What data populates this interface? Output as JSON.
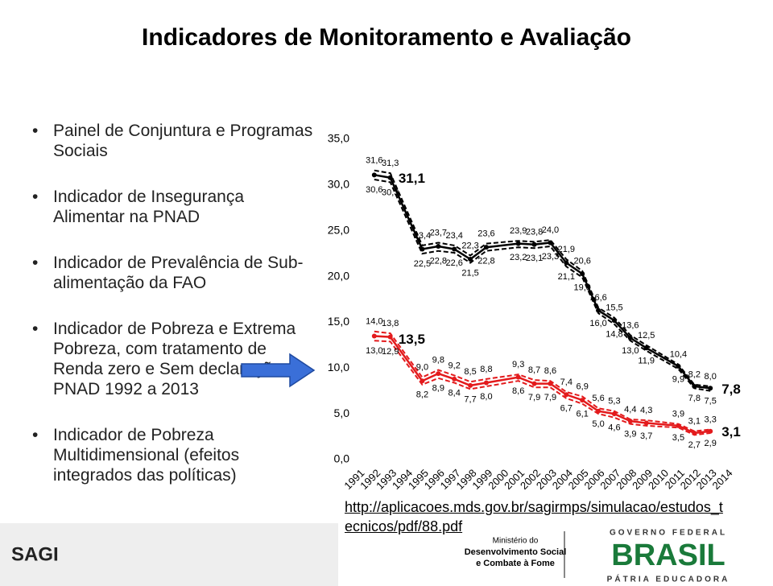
{
  "title": "Indicadores de Monitoramento e Avaliação",
  "bullets": [
    "Painel de Conjuntura e Programas Sociais",
    "Indicador de Insegurança Alimentar na PNAD",
    "Indicador de Prevalência de Sub-alimentação da FAO",
    "Indicador de Pobreza e Extrema Pobreza, com tratamento de Renda zero e Sem declaração na PNAD 1992 a 2013",
    "Indicador de Pobreza Multidimensional (efeitos integrados das políticas)"
  ],
  "chart_data": {
    "type": "line",
    "x": [
      1992,
      1993,
      1995,
      1996,
      1997,
      1998,
      1999,
      2001,
      2002,
      2003,
      2004,
      2005,
      2006,
      2007,
      2008,
      2009,
      2011,
      2012,
      2013
    ],
    "xlim": [
      1990.5,
      2014.5
    ],
    "xticks": [
      1991,
      1992,
      1993,
      1994,
      1995,
      1996,
      1997,
      1998,
      1999,
      2000,
      2001,
      2002,
      2003,
      2004,
      2005,
      2006,
      2007,
      2008,
      2009,
      2010,
      2011,
      2012,
      2013,
      2014
    ],
    "ylim": [
      0,
      35
    ],
    "yticks": [
      {
        "value": 0,
        "label": "0,0"
      },
      {
        "value": 5,
        "label": "5,0"
      },
      {
        "value": 10,
        "label": "10,0"
      },
      {
        "value": 15,
        "label": "15,0"
      },
      {
        "value": 20,
        "label": "20,0"
      },
      {
        "value": 25,
        "label": "25,0"
      },
      {
        "value": 30,
        "label": "30,0"
      },
      {
        "value": 35,
        "label": "35,0"
      }
    ],
    "series": [
      {
        "color": "#000000",
        "style": "solid",
        "values": [
          31.1,
          30.8,
          23.0,
          23.3,
          23.0,
          21.9,
          23.2,
          23.6,
          23.5,
          23.7,
          21.5,
          20.3,
          16.3,
          15.2,
          13.3,
          12.2,
          10.2,
          8.0,
          7.8
        ],
        "value_labels": [
          "31,1",
          null,
          null,
          null,
          null,
          null,
          null,
          null,
          null,
          null,
          null,
          null,
          null,
          null,
          null,
          null,
          null,
          null,
          "7,8"
        ]
      },
      {
        "color": "#000000",
        "style": "dashed",
        "values": [
          31.6,
          31.3,
          23.4,
          23.7,
          23.4,
          22.3,
          23.6,
          23.9,
          23.8,
          24.0,
          21.9,
          20.6,
          16.6,
          15.5,
          13.6,
          12.5,
          10.4,
          8.2,
          8.0
        ],
        "value_labels": [
          "31,6",
          "31,3",
          "23,4",
          "23,7",
          "23,4",
          "22,3",
          "23,6",
          "23,9",
          "23,8",
          "24,0",
          "21,9",
          "20,6",
          "16,6",
          "15,5",
          "13,6",
          "12,5",
          "10,4",
          "8,2",
          "8,0"
        ]
      },
      {
        "color": "#000000",
        "style": "dashed",
        "values": [
          30.6,
          30.3,
          22.5,
          22.8,
          22.6,
          21.5,
          22.8,
          23.2,
          23.1,
          23.3,
          21.1,
          19.9,
          16.0,
          14.8,
          13.0,
          11.9,
          9.9,
          7.8,
          7.5
        ],
        "value_labels": [
          "30,6",
          "30,3",
          "22,5",
          "22,8",
          "22,6",
          "21,5",
          "22,8",
          "23,2",
          "23,1",
          "23,3",
          "21,1",
          "19,9",
          "16,0",
          "14,8",
          "13,0",
          "11,9",
          "9,9",
          "7,8",
          "7,5"
        ]
      },
      {
        "color": "#e31a1c",
        "style": "solid",
        "values": [
          13.5,
          13.4,
          8.6,
          9.4,
          8.8,
          8.1,
          8.4,
          9.0,
          8.3,
          8.3,
          7.1,
          6.5,
          5.3,
          5.0,
          4.2,
          4.0,
          3.7,
          2.9,
          3.1
        ],
        "value_labels": [
          "13,5",
          null,
          null,
          null,
          null,
          null,
          null,
          null,
          null,
          null,
          null,
          null,
          null,
          null,
          null,
          null,
          null,
          null,
          "3,1"
        ]
      },
      {
        "color": "#e31a1c",
        "style": "dashed",
        "values": [
          14.0,
          13.8,
          9.0,
          9.8,
          9.2,
          8.5,
          8.8,
          9.3,
          8.7,
          8.6,
          7.4,
          6.9,
          5.6,
          5.3,
          4.4,
          4.3,
          3.9,
          3.1,
          3.3
        ],
        "value_labels": [
          "14,0",
          "13,8",
          "9,0",
          "9,8",
          "9,2",
          "8,5",
          "8,8",
          "9,3",
          "8,7",
          "8,6",
          "7,4",
          "6,9",
          "5,6",
          "5,3",
          "4,4",
          "4,3",
          "3,9",
          "3,1",
          "3,3"
        ]
      },
      {
        "color": "#e31a1c",
        "style": "dashed",
        "values": [
          13.0,
          12.9,
          8.2,
          8.9,
          8.4,
          7.7,
          8.0,
          8.6,
          7.9,
          7.9,
          6.7,
          6.1,
          5.0,
          4.6,
          3.9,
          3.7,
          3.5,
          2.7,
          2.9
        ],
        "value_labels": [
          "13,0",
          "12,9",
          "8,2",
          "8,9",
          "8,4",
          "7,7",
          "8,0",
          "8,6",
          "7,9",
          "7,9",
          "6,7",
          "6,1",
          "5,0",
          "4,6",
          "3,9",
          "3,7",
          "3,5",
          "2,7",
          "2,9"
        ]
      }
    ]
  },
  "link": "http://aplicacoes.mds.gov.br/sagirmps/simulacao/estudos_tecnicos/pdf/88.pdf",
  "footer": {
    "sagi": "SAGI",
    "ministry": [
      "Ministério do",
      "Desenvolvimento Social",
      "e Combate à Fome"
    ],
    "government": "GOVERNO FEDERAL",
    "brasil": "BRASIL",
    "motto": "PÁTRIA EDUCADORA"
  }
}
